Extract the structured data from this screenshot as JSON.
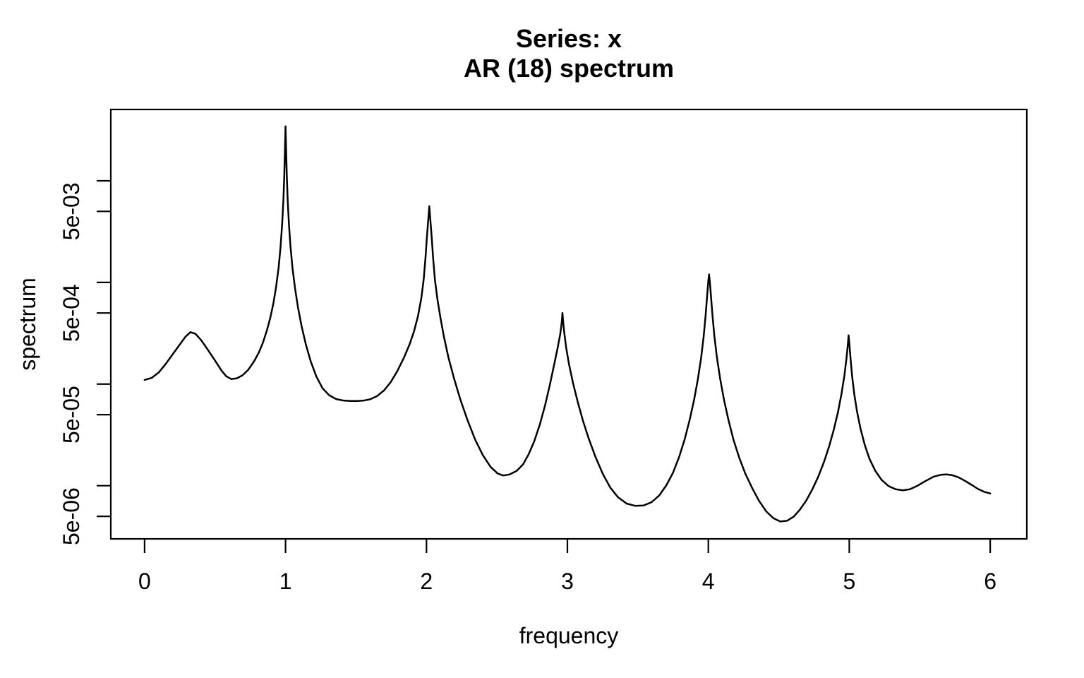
{
  "title": {
    "line1": "Series: x",
    "line2": "AR (18) spectrum"
  },
  "chart_data": {
    "type": "line",
    "title": "Series: x / AR (18) spectrum",
    "xlabel": "frequency",
    "ylabel": "spectrum",
    "x_ticks": [
      {
        "value": 0,
        "label": "0"
      },
      {
        "value": 1,
        "label": "1"
      },
      {
        "value": 2,
        "label": "2"
      },
      {
        "value": 3,
        "label": "3"
      },
      {
        "value": 4,
        "label": "4"
      },
      {
        "value": 5,
        "label": "5"
      },
      {
        "value": 6,
        "label": "6"
      }
    ],
    "y_ticks": [
      {
        "value": 0.01,
        "label": ""
      },
      {
        "value": 0.005,
        "label": "5e-03"
      },
      {
        "value": 0.001,
        "label": ""
      },
      {
        "value": 0.0005,
        "label": "5e-04"
      },
      {
        "value": 0.0001,
        "label": ""
      },
      {
        "value": 5e-05,
        "label": "5e-05"
      },
      {
        "value": 1e-05,
        "label": ""
      },
      {
        "value": 5e-06,
        "label": "5e-06"
      }
    ],
    "xlim": [
      -0.24,
      6.26
    ],
    "ylim": [
      3e-06,
      0.0503
    ],
    "y_scale": "log10",
    "grid": false,
    "legend": "none",
    "line_color": "#000000",
    "background": "#ffffff",
    "series": [
      {
        "name": "x",
        "points": [
          [
            0.0,
            0.00011
          ],
          [
            0.05,
            0.000115
          ],
          [
            0.1,
            0.00013
          ],
          [
            0.15,
            0.000158
          ],
          [
            0.2,
            0.000197
          ],
          [
            0.25,
            0.000245
          ],
          [
            0.29,
            0.000292
          ],
          [
            0.325,
            0.000324
          ],
          [
            0.36,
            0.000313
          ],
          [
            0.4,
            0.000272
          ],
          [
            0.45,
            0.000216
          ],
          [
            0.5,
            0.00017
          ],
          [
            0.545,
            0.000136
          ],
          [
            0.58,
            0.000119
          ],
          [
            0.615,
            0.000112
          ],
          [
            0.655,
            0.000114
          ],
          [
            0.695,
            0.000122
          ],
          [
            0.735,
            0.000138
          ],
          [
            0.775,
            0.000166
          ],
          [
            0.81,
            0.000204
          ],
          [
            0.84,
            0.000257
          ],
          [
            0.868,
            0.000339
          ],
          [
            0.892,
            0.000452
          ],
          [
            0.914,
            0.000624
          ],
          [
            0.933,
            0.000902
          ],
          [
            0.951,
            0.0014
          ],
          [
            0.965,
            0.00226
          ],
          [
            0.976,
            0.00376
          ],
          [
            0.985,
            0.00653
          ],
          [
            0.991,
            0.0111
          ],
          [
            0.996,
            0.0204
          ],
          [
            1.0,
            0.0343
          ],
          [
            1.004,
            0.0204
          ],
          [
            1.009,
            0.0111
          ],
          [
            1.015,
            0.00653
          ],
          [
            1.024,
            0.00376
          ],
          [
            1.035,
            0.00226
          ],
          [
            1.049,
            0.0014
          ],
          [
            1.067,
            0.000881
          ],
          [
            1.088,
            0.000569
          ],
          [
            1.113,
            0.000376
          ],
          [
            1.143,
            0.000248
          ],
          [
            1.178,
            0.000168
          ],
          [
            1.218,
            0.000119
          ],
          [
            1.262,
            9.12e-05
          ],
          [
            1.31,
            7.76e-05
          ],
          [
            1.36,
            7.11e-05
          ],
          [
            1.41,
            6.89e-05
          ],
          [
            1.46,
            6.82e-05
          ],
          [
            1.505,
            6.81e-05
          ],
          [
            1.55,
            6.87e-05
          ],
          [
            1.6,
            7.08e-05
          ],
          [
            1.65,
            7.62e-05
          ],
          [
            1.7,
            8.71e-05
          ],
          [
            1.745,
            0.000104
          ],
          [
            1.79,
            0.000132
          ],
          [
            1.84,
            0.000182
          ],
          [
            1.88,
            0.000245
          ],
          [
            1.912,
            0.000331
          ],
          [
            1.94,
            0.000468
          ],
          [
            1.963,
            0.000692
          ],
          [
            1.98,
            0.00106
          ],
          [
            1.993,
            0.00174
          ],
          [
            2.003,
            0.00279
          ],
          [
            2.012,
            0.00403
          ],
          [
            2.02,
            0.00562
          ],
          [
            2.028,
            0.00403
          ],
          [
            2.037,
            0.00279
          ],
          [
            2.047,
            0.00174
          ],
          [
            2.06,
            0.00106
          ],
          [
            2.077,
            0.000692
          ],
          [
            2.098,
            0.000457
          ],
          [
            2.123,
            0.000295
          ],
          [
            2.155,
            0.000184
          ],
          [
            2.195,
            0.000114
          ],
          [
            2.24,
            7.08e-05
          ],
          [
            2.29,
            4.47e-05
          ],
          [
            2.345,
            2.85e-05
          ],
          [
            2.4,
            2e-05
          ],
          [
            2.455,
            1.53e-05
          ],
          [
            2.505,
            1.32e-05
          ],
          [
            2.545,
            1.26e-05
          ],
          [
            2.59,
            1.29e-05
          ],
          [
            2.64,
            1.4e-05
          ],
          [
            2.685,
            1.62e-05
          ],
          [
            2.725,
            2.04e-05
          ],
          [
            2.765,
            2.75e-05
          ],
          [
            2.805,
            4.03e-05
          ],
          [
            2.842,
            6.24e-05
          ],
          [
            2.876,
            9.89e-05
          ],
          [
            2.906,
            0.000155
          ],
          [
            2.93,
            0.000224
          ],
          [
            2.949,
            0.000309
          ],
          [
            2.959,
            0.000394
          ],
          [
            2.965,
            0.000501
          ],
          [
            2.971,
            0.000394
          ],
          [
            2.979,
            0.000309
          ],
          [
            2.992,
            0.000224
          ],
          [
            3.012,
            0.000155
          ],
          [
            3.04,
            0.000102
          ],
          [
            3.073,
            6.68e-05
          ],
          [
            3.11,
            4.37e-05
          ],
          [
            3.152,
            2.88e-05
          ],
          [
            3.2,
            1.91e-05
          ],
          [
            3.252,
            1.3e-05
          ],
          [
            3.305,
            9.55e-06
          ],
          [
            3.36,
            7.67e-06
          ],
          [
            3.42,
            6.68e-06
          ],
          [
            3.48,
            6.34e-06
          ],
          [
            3.54,
            6.38e-06
          ],
          [
            3.598,
            6.89e-06
          ],
          [
            3.652,
            8.04e-06
          ],
          [
            3.702,
            1.01e-05
          ],
          [
            3.748,
            1.33e-05
          ],
          [
            3.792,
            1.91e-05
          ],
          [
            3.832,
            2.85e-05
          ],
          [
            3.868,
            4.47e-05
          ],
          [
            3.899,
            7e-05
          ],
          [
            3.926,
            0.000112
          ],
          [
            3.949,
            0.000182
          ],
          [
            3.967,
            0.000295
          ],
          [
            3.981,
            0.000479
          ],
          [
            3.991,
            0.000724
          ],
          [
            3.999,
            0.001
          ],
          [
            4.005,
            0.0012
          ],
          [
            4.011,
            0.001
          ],
          [
            4.019,
            0.000724
          ],
          [
            4.029,
            0.000479
          ],
          [
            4.043,
            0.000295
          ],
          [
            4.061,
            0.000182
          ],
          [
            4.084,
            0.000112
          ],
          [
            4.111,
            7e-05
          ],
          [
            4.142,
            4.47e-05
          ],
          [
            4.178,
            2.85e-05
          ],
          [
            4.218,
            1.91e-05
          ],
          [
            4.262,
            1.32e-05
          ],
          [
            4.31,
            9.55e-06
          ],
          [
            4.36,
            7.08e-06
          ],
          [
            4.412,
            5.56e-06
          ],
          [
            4.462,
            4.79e-06
          ],
          [
            4.51,
            4.45e-06
          ],
          [
            4.558,
            4.52e-06
          ],
          [
            4.605,
            4.95e-06
          ],
          [
            4.65,
            5.82e-06
          ],
          [
            4.695,
            7.16e-06
          ],
          [
            4.738,
            9.23e-06
          ],
          [
            4.78,
            1.23e-05
          ],
          [
            4.82,
            1.7e-05
          ],
          [
            4.857,
            2.43e-05
          ],
          [
            4.89,
            3.55e-05
          ],
          [
            4.92,
            5.31e-05
          ],
          [
            4.945,
            8.04e-05
          ],
          [
            4.965,
            0.00012
          ],
          [
            4.98,
            0.000178
          ],
          [
            4.99,
            0.000245
          ],
          [
            4.995,
            0.000302
          ],
          [
            5.001,
            0.000245
          ],
          [
            5.009,
            0.000178
          ],
          [
            5.02,
            0.00012
          ],
          [
            5.035,
            8.04e-05
          ],
          [
            5.055,
            5.37e-05
          ],
          [
            5.08,
            3.63e-05
          ],
          [
            5.11,
            2.51e-05
          ],
          [
            5.145,
            1.82e-05
          ],
          [
            5.185,
            1.4e-05
          ],
          [
            5.23,
            1.14e-05
          ],
          [
            5.28,
            9.89e-06
          ],
          [
            5.33,
            9.23e-06
          ],
          [
            5.38,
            9.02e-06
          ],
          [
            5.43,
            9.23e-06
          ],
          [
            5.485,
            1e-05
          ],
          [
            5.54,
            1.11e-05
          ],
          [
            5.6,
            1.23e-05
          ],
          [
            5.65,
            1.28e-05
          ],
          [
            5.69,
            1.29e-05
          ],
          [
            5.73,
            1.27e-05
          ],
          [
            5.775,
            1.21e-05
          ],
          [
            5.82,
            1.12e-05
          ],
          [
            5.868,
            1.02e-05
          ],
          [
            5.915,
            9.27e-06
          ],
          [
            5.958,
            8.71e-06
          ],
          [
            6.0,
            8.39e-06
          ]
        ]
      }
    ]
  }
}
